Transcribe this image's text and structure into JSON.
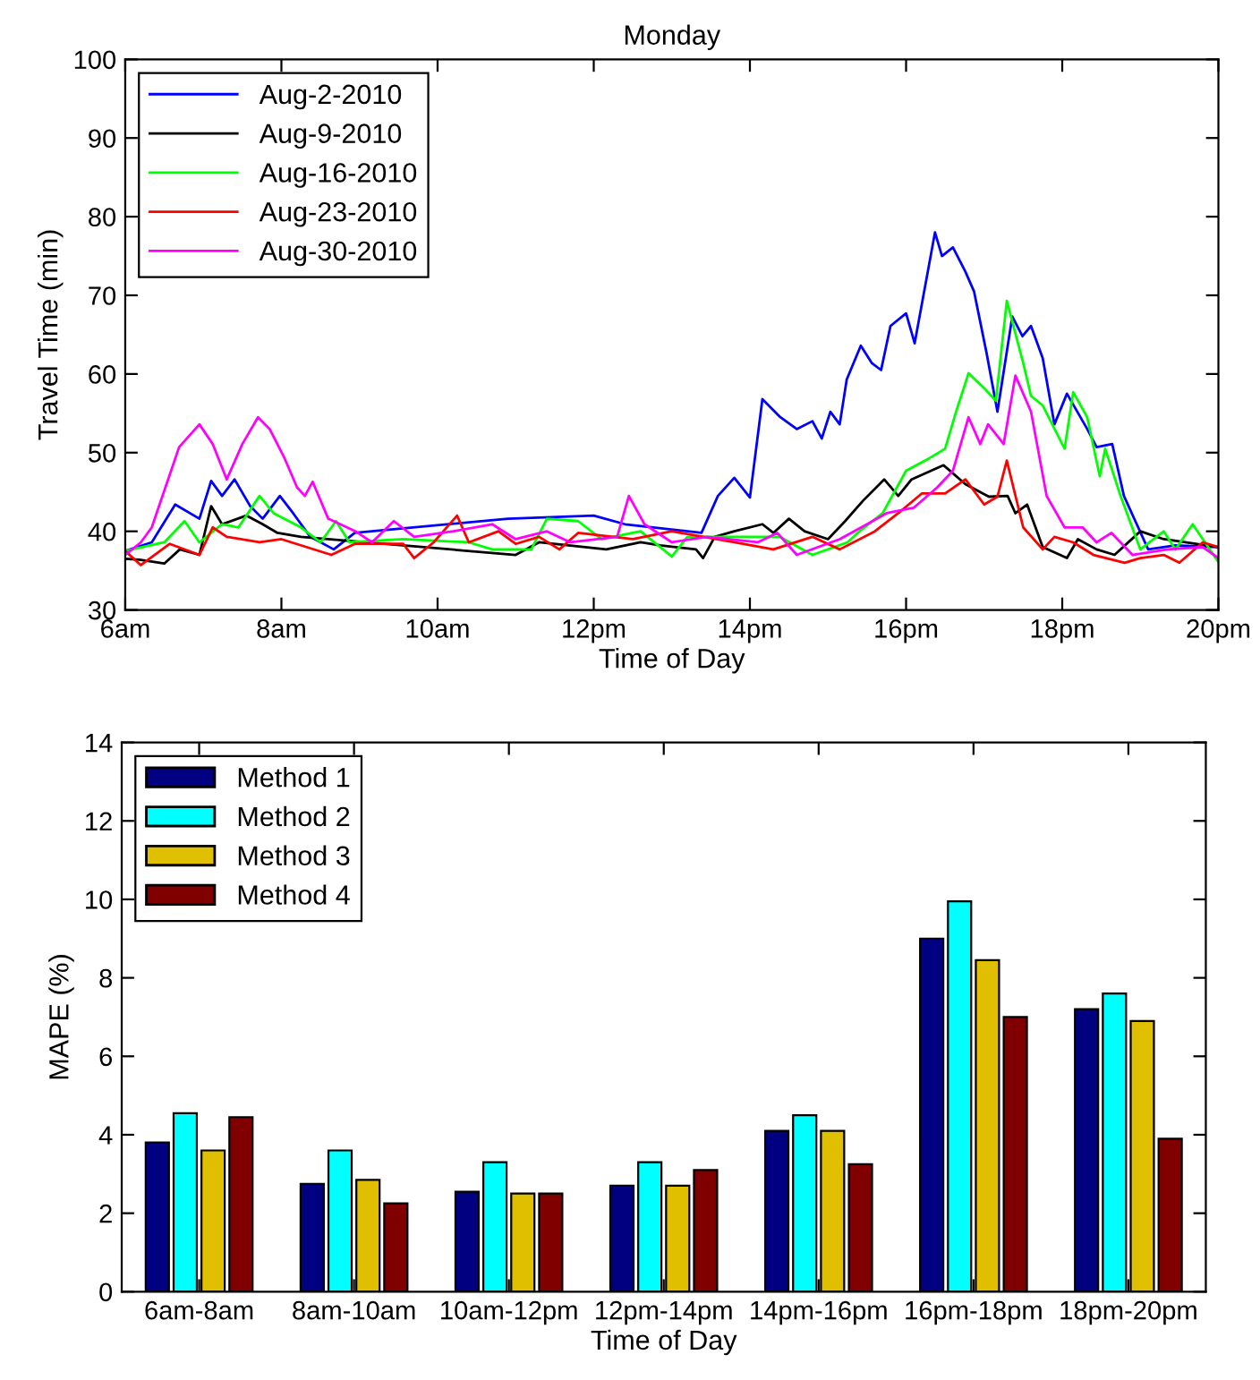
{
  "chart_data": [
    {
      "type": "line",
      "title": "Monday",
      "xlabel": "Time of Day",
      "ylabel": "Travel Time (min)",
      "legend": "top left",
      "xlim": [
        6,
        20
      ],
      "ylim": [
        30,
        100
      ],
      "xticks": [
        {
          "value": 6,
          "label": "6am"
        },
        {
          "value": 8,
          "label": "8am"
        },
        {
          "value": 10,
          "label": "10am"
        },
        {
          "value": 12,
          "label": "12pm"
        },
        {
          "value": 14,
          "label": "14pm"
        },
        {
          "value": 16,
          "label": "16pm"
        },
        {
          "value": 18,
          "label": "18pm"
        },
        {
          "value": 20,
          "label": "20pm"
        }
      ],
      "yticks": [
        30,
        40,
        50,
        60,
        70,
        80,
        90,
        100
      ],
      "series": [
        {
          "name": "Aug-2-2010",
          "color": "#0000ff",
          "x": [
            6.0,
            6.34,
            6.64,
            6.95,
            7.1,
            7.24,
            7.4,
            7.6,
            7.76,
            7.98,
            8.15,
            8.37,
            8.67,
            8.94,
            10.9,
            12.0,
            12.4,
            13.38,
            13.59,
            13.8,
            14.0,
            14.16,
            14.39,
            14.6,
            14.8,
            14.92,
            15.03,
            15.15,
            15.24,
            15.42,
            15.56,
            15.68,
            15.8,
            16.0,
            16.11,
            16.37,
            16.46,
            16.6,
            16.76,
            16.87,
            17.03,
            17.17,
            17.36,
            17.49,
            17.6,
            17.75,
            17.9,
            18.06,
            18.32,
            18.44,
            18.64,
            18.79,
            19.1,
            19.45,
            20.0
          ],
          "values": [
            37.5,
            38.6,
            43.4,
            41.6,
            46.4,
            44.5,
            46.6,
            43.2,
            41.6,
            44.5,
            42.3,
            39.3,
            37.7,
            39.8,
            41.6,
            42,
            40.9,
            39.8,
            44.5,
            46.8,
            44.3,
            56.8,
            54.5,
            53,
            54,
            51.8,
            55.2,
            53.6,
            59.3,
            63.6,
            61.4,
            60.5,
            66.1,
            67.7,
            63.9,
            78,
            75,
            76.1,
            73,
            70.5,
            62.7,
            55.2,
            67.3,
            64.8,
            66.1,
            62,
            53.6,
            57.5,
            53,
            50.7,
            51.1,
            44.5,
            37.7,
            38.2,
            38
          ]
        },
        {
          "name": "Aug-9-2010",
          "color": "#000000",
          "x": [
            6.0,
            6.18,
            6.5,
            6.7,
            6.95,
            7.1,
            7.24,
            7.55,
            7.76,
            7.95,
            8.25,
            11.0,
            11.3,
            12.16,
            12.6,
            12.85,
            13.31,
            13.4,
            13.55,
            13.8,
            14.16,
            14.3,
            14.5,
            14.7,
            15.0,
            15.22,
            15.45,
            15.72,
            15.9,
            16.07,
            16.48,
            16.76,
            17.06,
            17.3,
            17.4,
            17.55,
            17.75,
            18.06,
            18.2,
            18.44,
            18.67,
            19.0,
            19.3,
            20.0
          ],
          "values": [
            36.5,
            36.4,
            35.9,
            37.7,
            37,
            43.2,
            40.9,
            42,
            40.9,
            39.8,
            39.3,
            37,
            38.6,
            37.7,
            38.6,
            38.2,
            37.7,
            36.6,
            39.3,
            40,
            40.9,
            39.8,
            41.6,
            40,
            39,
            41.3,
            43.9,
            46.6,
            44.5,
            46.6,
            48.4,
            46,
            44.4,
            44.5,
            42.3,
            43.4,
            38,
            36.6,
            39,
            37.7,
            37,
            40,
            39,
            38
          ]
        },
        {
          "name": "Aug-16-2010",
          "color": "#00ff00",
          "x": [
            6.0,
            6.5,
            6.76,
            6.95,
            7.24,
            7.45,
            7.72,
            7.9,
            8.25,
            8.5,
            8.7,
            8.87,
            9.56,
            10.4,
            10.7,
            11.2,
            11.4,
            11.8,
            12.1,
            12.6,
            13.0,
            13.2,
            13.6,
            14.38,
            14.8,
            15.25,
            15.38,
            15.7,
            16.0,
            16.3,
            16.5,
            16.64,
            16.8,
            17.0,
            17.15,
            17.29,
            17.5,
            17.6,
            17.75,
            18.03,
            18.14,
            18.32,
            18.48,
            18.55,
            18.75,
            19.0,
            19.3,
            19.45,
            19.67,
            20.0
          ],
          "values": [
            37.5,
            38.6,
            41.3,
            38.6,
            40.9,
            40.5,
            44.5,
            42.3,
            40.5,
            38.6,
            41.3,
            38.6,
            39,
            38.6,
            37.7,
            37.7,
            41.6,
            41.3,
            39,
            40,
            36.8,
            39.3,
            39.3,
            39.3,
            37,
            38.6,
            39.8,
            42.3,
            47.7,
            49.3,
            50.5,
            55.2,
            60.1,
            58.2,
            56.6,
            69.3,
            61.4,
            57.2,
            56,
            50.5,
            57.7,
            54.5,
            47,
            50.5,
            44.4,
            37.7,
            40,
            37.7,
            40.9,
            36.1
          ]
        },
        {
          "name": "Aug-23-2010",
          "color": "#ff0000",
          "x": [
            6.0,
            6.2,
            6.57,
            6.95,
            7.12,
            7.3,
            7.72,
            8.0,
            8.64,
            8.94,
            9.56,
            9.7,
            9.95,
            10.25,
            10.4,
            10.78,
            11.0,
            11.3,
            11.56,
            11.8,
            12.5,
            13.0,
            13.8,
            14.3,
            14.8,
            15.15,
            15.6,
            15.9,
            16.2,
            16.5,
            16.76,
            17.0,
            17.17,
            17.29,
            17.5,
            17.75,
            17.9,
            18.14,
            18.4,
            18.8,
            19.0,
            19.3,
            19.5,
            19.8,
            20.0
          ],
          "values": [
            37.5,
            35.7,
            38.4,
            37,
            40.5,
            39.3,
            38.6,
            39,
            37,
            38.4,
            38.4,
            36.6,
            38.6,
            42,
            38.6,
            40,
            38.4,
            39.3,
            37.7,
            39.8,
            39,
            40,
            38.6,
            37.7,
            39.3,
            37.7,
            40,
            42.3,
            44.8,
            44.8,
            46.6,
            43.4,
            44.4,
            49,
            40.5,
            37.7,
            39.3,
            38.6,
            37,
            36,
            36.6,
            37,
            36,
            38.6,
            38
          ]
        },
        {
          "name": "Aug-30-2010",
          "color": "#ff00ff",
          "x": [
            6.0,
            6.2,
            6.34,
            6.69,
            6.95,
            7.12,
            7.3,
            7.5,
            7.7,
            7.85,
            8.04,
            8.2,
            8.3,
            8.4,
            8.6,
            8.95,
            9.16,
            9.44,
            9.7,
            10.2,
            10.7,
            11.0,
            11.4,
            11.7,
            12.3,
            12.45,
            12.65,
            13.0,
            13.45,
            14.1,
            14.35,
            14.6,
            15.15,
            15.5,
            15.75,
            16.1,
            16.4,
            16.6,
            16.8,
            16.95,
            17.05,
            17.25,
            17.4,
            17.6,
            17.8,
            18.03,
            18.26,
            18.44,
            18.63,
            18.9,
            19.35,
            19.8,
            20.0
          ],
          "values": [
            37,
            38.6,
            40.5,
            50.7,
            53.6,
            51.1,
            46.6,
            51.1,
            54.5,
            53,
            49.3,
            45.6,
            44.5,
            46.3,
            41.6,
            40,
            38.6,
            41.3,
            39.3,
            40,
            40.9,
            39,
            40,
            38.6,
            39.3,
            44.5,
            40.9,
            38.6,
            39.3,
            38.6,
            39.8,
            37,
            39,
            40.9,
            42.3,
            43,
            45.6,
            47.7,
            54.5,
            51.1,
            53.6,
            51.1,
            59.8,
            55.2,
            44.5,
            40.5,
            40.5,
            38.6,
            39.8,
            37,
            37.7,
            38,
            36.6
          ]
        }
      ]
    },
    {
      "type": "bar",
      "xlabel": "Time of Day",
      "ylabel": "MAPE (%)",
      "legend": "top left",
      "categories": [
        "6am-8am",
        "8am-10am",
        "10am-12pm",
        "12pm-14pm",
        "14pm-16pm",
        "16pm-18pm",
        "18pm-20pm"
      ],
      "ylim": [
        0,
        14
      ],
      "yticks": [
        0,
        2,
        4,
        6,
        8,
        10,
        12,
        14
      ],
      "series": [
        {
          "name": "Method 1",
          "color": "#000080",
          "values": [
            3.8,
            2.75,
            2.55,
            2.7,
            4.1,
            9.0,
            7.2
          ]
        },
        {
          "name": "Method 2",
          "color": "#00ffff",
          "values": [
            4.55,
            3.6,
            3.3,
            3.3,
            4.5,
            9.95,
            7.6
          ]
        },
        {
          "name": "Method 3",
          "color": "#dfbf00",
          "values": [
            3.6,
            2.85,
            2.5,
            2.7,
            4.1,
            8.45,
            6.9
          ]
        },
        {
          "name": "Method 4",
          "color": "#800000",
          "values": [
            4.45,
            2.25,
            2.5,
            3.1,
            3.25,
            7.0,
            3.9
          ]
        }
      ]
    }
  ]
}
